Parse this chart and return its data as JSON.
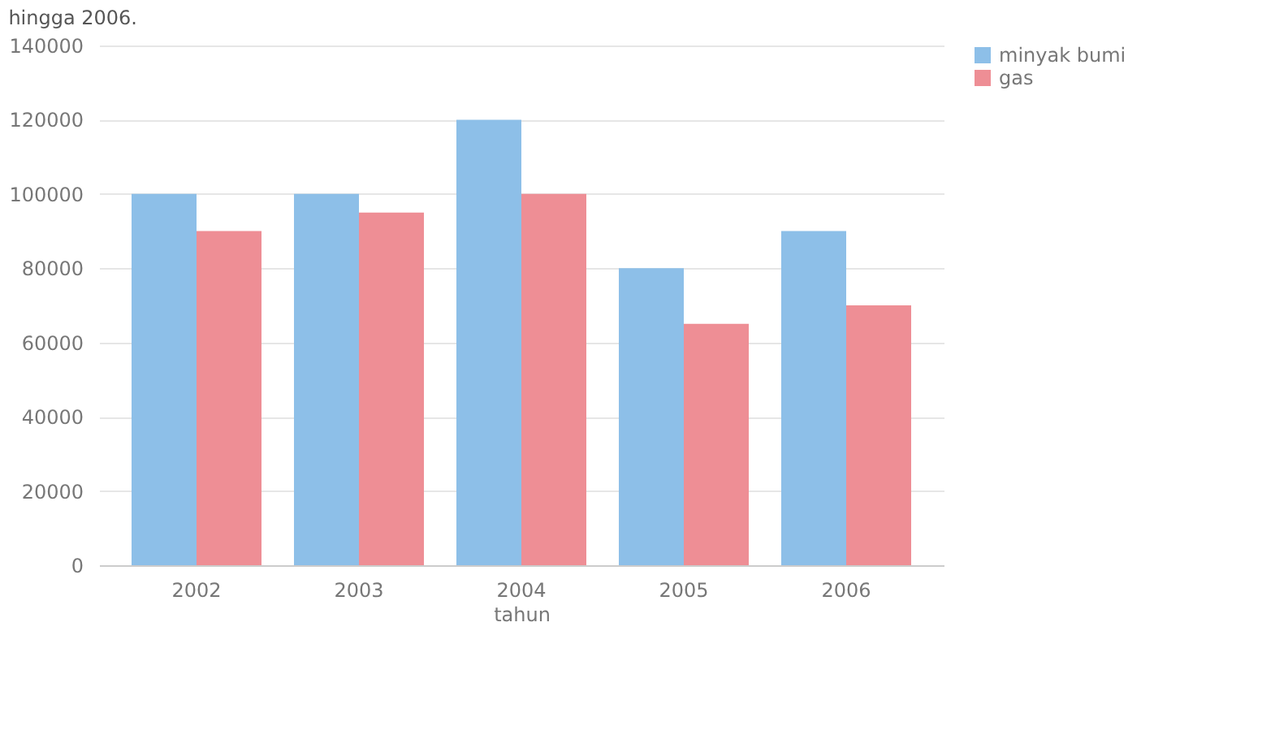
{
  "chart_data": {
    "type": "bar",
    "xlabel": "tahun",
    "categories": [
      "2002",
      "2003",
      "2004",
      "2005",
      "2006"
    ],
    "series": [
      {
        "name": "minyak bumi",
        "color": "#8dbfe8",
        "values": [
          100000,
          100000,
          120000,
          80000,
          90000
        ]
      },
      {
        "name": "gas",
        "color": "#ee8e95",
        "values": [
          90000,
          95000,
          100000,
          65000,
          70000
        ]
      }
    ],
    "ylim": [
      0,
      140000
    ],
    "yticks": [
      0,
      20000,
      40000,
      60000,
      80000,
      100000,
      120000,
      140000
    ],
    "grid": "y",
    "legend": "right",
    "annotations": [
      "hingga 2006."
    ]
  }
}
